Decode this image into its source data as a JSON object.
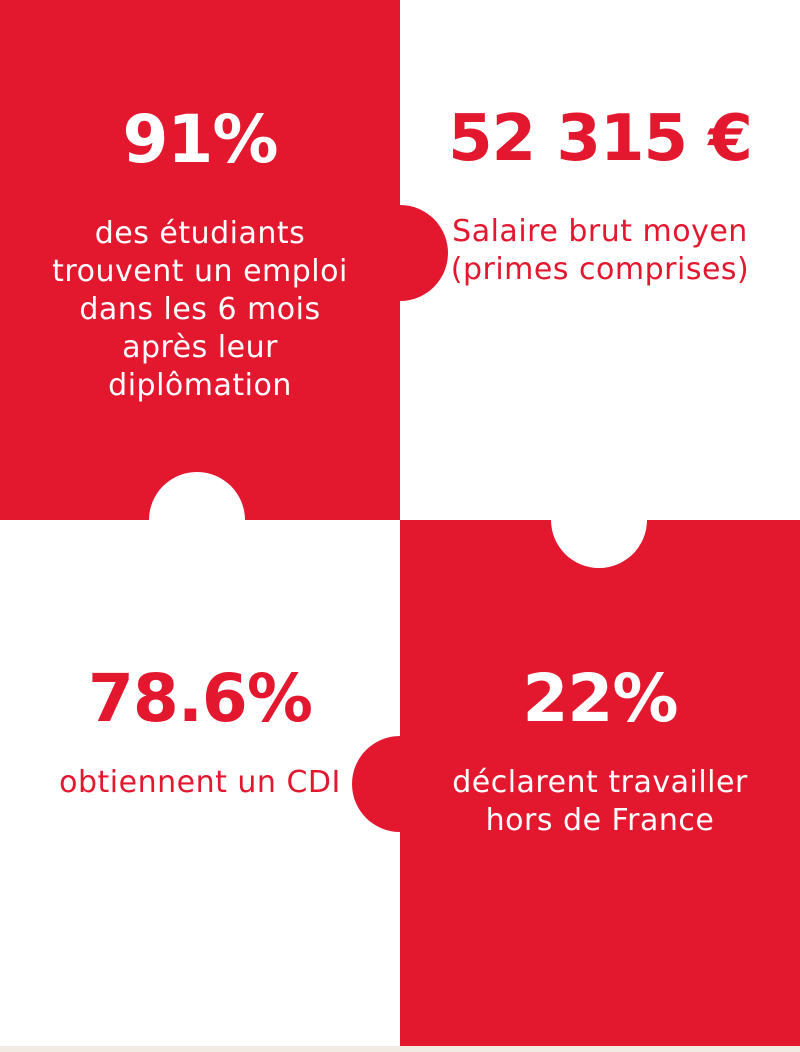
{
  "colors": {
    "brand_red": "#e3182f",
    "white": "#ffffff",
    "strip": "#f1ebe4"
  },
  "stats": [
    {
      "value": "91%",
      "description": "des étudiants trouvent un emploi dans les 6 mois après leur diplômation"
    },
    {
      "value": "52 315 €",
      "description": "Salaire brut moyen (primes comprises)"
    },
    {
      "value": "78.6%",
      "description": "obtiennent un CDI"
    },
    {
      "value": "22%",
      "description": "déclarent travailler hors de France"
    }
  ]
}
